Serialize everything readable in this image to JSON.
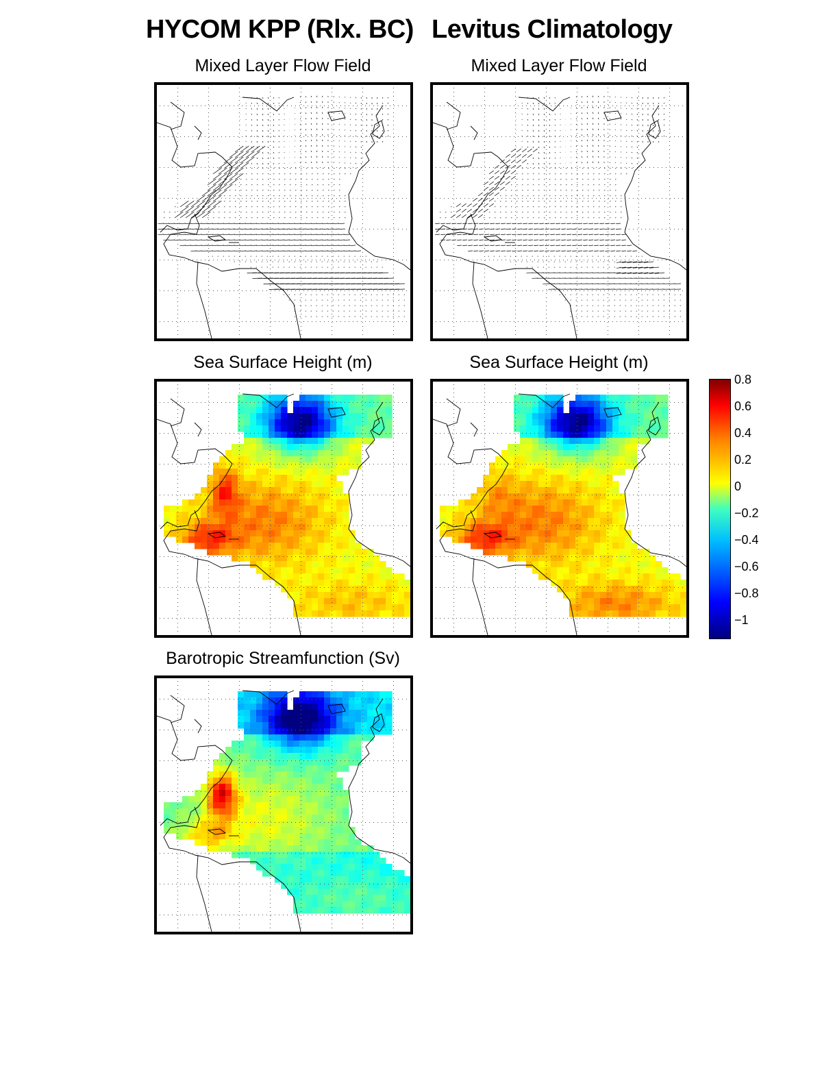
{
  "columns": {
    "left_title": "HYCOM KPP (Rlx. BC)",
    "right_title": "Levitus Climatology"
  },
  "panels": {
    "flow_left": "Mixed Layer Flow Field",
    "flow_right": "Mixed Layer Flow Field",
    "ssh_left": "Sea Surface Height (m)",
    "ssh_right": "Sea Surface Height (m)",
    "psi_left": "Barotropic Streamfunction (Sv)"
  },
  "colorbar": {
    "ticks": [
      "0.8",
      "0.6",
      "0.4",
      "0.2",
      "0",
      "−0.2",
      "−0.4",
      "−0.6",
      "−0.8",
      "−1"
    ],
    "min": -1.1,
    "max": 0.8,
    "colormap": "jet"
  },
  "colors": {
    "frame": "#000000",
    "land_outline": "#000000",
    "grid_dots": "#555555"
  }
}
